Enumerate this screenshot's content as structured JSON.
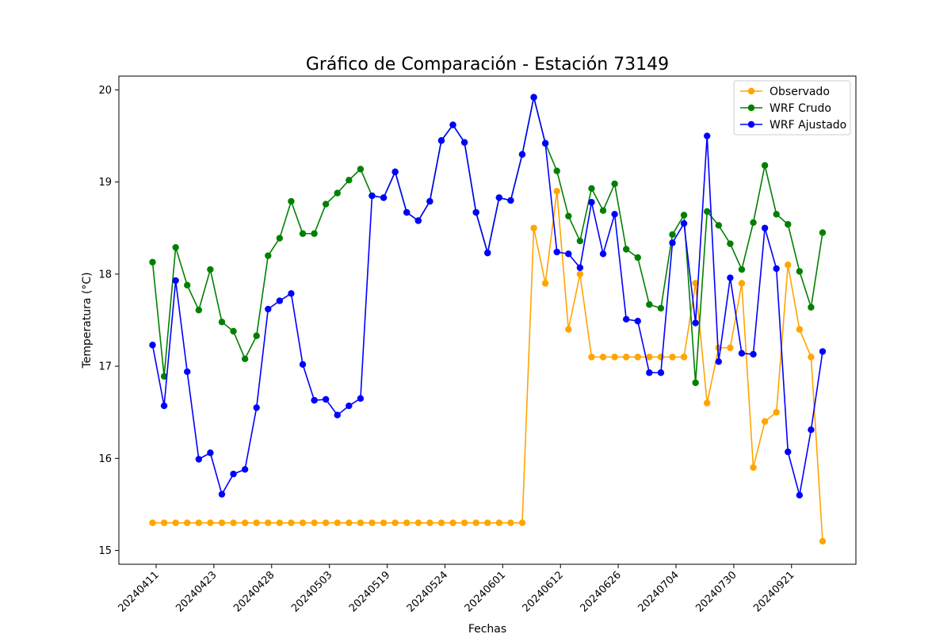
{
  "chart_data": {
    "type": "line",
    "title": "Gráfico de Comparación - Estación 73149",
    "xlabel": "Fechas",
    "ylabel": "Temperatura (°C)",
    "ylim": [
      14.85,
      20.15
    ],
    "yticks": [
      "15",
      "16",
      "17",
      "18",
      "19",
      "20"
    ],
    "xticks": [
      {
        "index": 0,
        "label": "20240411"
      },
      {
        "index": 5,
        "label": "20240423"
      },
      {
        "index": 10,
        "label": "20240428"
      },
      {
        "index": 15,
        "label": "20240503"
      },
      {
        "index": 20,
        "label": "20240519"
      },
      {
        "index": 25,
        "label": "20240524"
      },
      {
        "index": 30,
        "label": "20240601"
      },
      {
        "index": 35,
        "label": "20240612"
      },
      {
        "index": 40,
        "label": "20240626"
      },
      {
        "index": 45,
        "label": "20240704"
      },
      {
        "index": 50,
        "label": "20240730"
      },
      {
        "index": 55,
        "label": "20240921"
      }
    ],
    "grid": false,
    "legend_position": "top-right",
    "series": [
      {
        "name": "Observado",
        "color": "#ffa500",
        "values": [
          15.3,
          15.3,
          15.3,
          15.3,
          15.3,
          15.3,
          15.3,
          15.3,
          15.3,
          15.3,
          15.3,
          15.3,
          15.3,
          15.3,
          15.3,
          15.3,
          15.3,
          15.3,
          15.3,
          15.3,
          15.3,
          15.3,
          15.3,
          15.3,
          15.3,
          15.3,
          15.3,
          15.3,
          15.3,
          15.3,
          15.3,
          15.3,
          15.3,
          18.5,
          17.9,
          18.9,
          17.4,
          18.0,
          17.1,
          17.1,
          17.1,
          17.1,
          17.1,
          17.1,
          17.1,
          17.1,
          17.1,
          17.9,
          16.6,
          17.2,
          17.2,
          17.9,
          15.9,
          16.4,
          16.5,
          18.1,
          17.4,
          17.1,
          15.1
        ]
      },
      {
        "name": "WRF Crudo",
        "color": "#008000",
        "values": [
          18.13,
          16.89,
          18.29,
          17.88,
          17.61,
          18.05,
          17.48,
          17.38,
          17.08,
          17.33,
          18.2,
          18.39,
          18.79,
          18.44,
          18.44,
          18.76,
          18.88,
          19.02,
          19.14,
          18.85,
          18.83,
          19.11,
          18.67,
          18.58,
          18.79,
          19.45,
          19.62,
          19.43,
          18.67,
          18.23,
          18.83,
          18.8,
          19.3,
          19.92,
          19.42,
          19.12,
          18.63,
          18.36,
          18.93,
          18.69,
          18.98,
          18.27,
          18.18,
          17.67,
          17.63,
          18.43,
          18.64,
          16.82,
          18.68,
          18.53,
          18.33,
          18.05,
          18.56,
          19.18,
          18.65,
          18.54,
          18.03,
          17.64,
          18.45
        ]
      },
      {
        "name": "WRF Ajustado",
        "color": "#0000ff",
        "values": [
          17.23,
          16.57,
          17.93,
          16.94,
          15.99,
          16.06,
          15.61,
          15.83,
          15.88,
          16.55,
          17.62,
          17.71,
          17.79,
          17.02,
          16.63,
          16.64,
          16.47,
          16.57,
          16.65,
          18.85,
          18.83,
          19.11,
          18.67,
          18.58,
          18.79,
          19.45,
          19.62,
          19.43,
          18.67,
          18.23,
          18.83,
          18.8,
          19.3,
          19.92,
          19.42,
          18.24,
          18.22,
          18.07,
          18.78,
          18.22,
          18.65,
          17.51,
          17.49,
          16.93,
          16.93,
          18.34,
          18.55,
          17.47,
          19.5,
          17.05,
          17.96,
          17.14,
          17.13,
          18.5,
          18.06,
          16.07,
          15.6,
          16.31,
          17.16
        ]
      }
    ]
  }
}
